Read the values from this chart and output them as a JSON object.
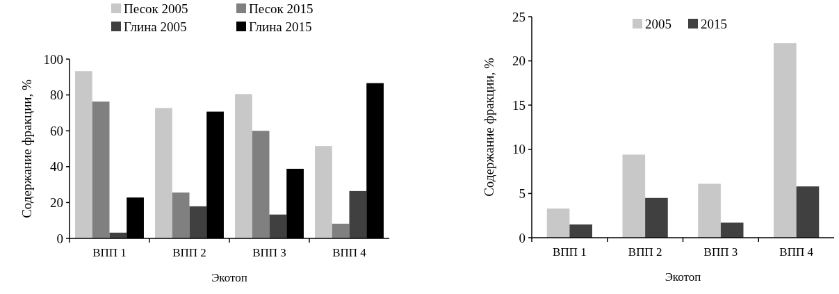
{
  "chart_data": [
    {
      "type": "bar",
      "categories": [
        "ВПП 1",
        "ВПП 2",
        "ВПП 3",
        "ВПП 4"
      ],
      "xlabel": "Экотоп",
      "ylabel": "Содержание фракции, %",
      "ylim": [
        0,
        100
      ],
      "yticks": [
        0,
        20,
        40,
        60,
        80,
        100
      ],
      "legend": "top",
      "series": [
        {
          "name": "Песок 2005",
          "color": "#c8c8c8",
          "values": [
            93.3,
            72.7,
            80.5,
            51.5
          ]
        },
        {
          "name": "Песок 2015",
          "color": "#808080",
          "values": [
            76.3,
            25.6,
            60,
            8.2
          ]
        },
        {
          "name": "Глина 2005",
          "color": "#404040",
          "values": [
            3.2,
            17.9,
            13.3,
            26.4
          ]
        },
        {
          "name": "Глина 2015",
          "color": "#000000",
          "values": [
            22.8,
            70.7,
            38.8,
            86.6
          ]
        }
      ]
    },
    {
      "type": "bar",
      "categories": [
        "ВПП 1",
        "ВПП 2",
        "ВПП 3",
        "ВПП 4"
      ],
      "xlabel": "Экотоп",
      "ylabel": "Содержание фракции, %",
      "ylim": [
        0,
        25
      ],
      "yticks": [
        0,
        5,
        10,
        15,
        20,
        25
      ],
      "legend": "top",
      "series": [
        {
          "name": "2005",
          "color": "#c8c8c8",
          "values": [
            3.3,
            9.4,
            6.1,
            22.0
          ]
        },
        {
          "name": "2015",
          "color": "#404040",
          "values": [
            1.5,
            4.5,
            1.7,
            5.8
          ]
        }
      ]
    }
  ]
}
